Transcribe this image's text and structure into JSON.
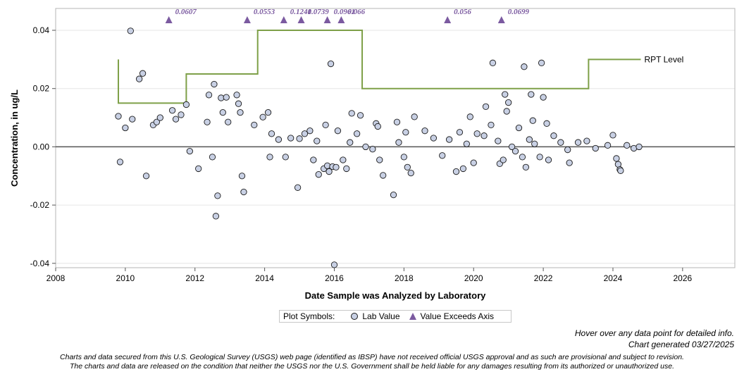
{
  "chart_data": {
    "type": "scatter",
    "title": "",
    "xlabel": "Date Sample was Analyzed by Laboratory",
    "ylabel": "Concentration, in ug/L",
    "xlim": [
      2008,
      2027.5
    ],
    "ylim": [
      -0.0415,
      0.0475
    ],
    "x_ticks": [
      "2008",
      "2010",
      "2012",
      "2014",
      "2016",
      "2018",
      "2020",
      "2022",
      "2024",
      "2026"
    ],
    "y_ticks": [
      "0.04",
      "0.02",
      "0.00",
      "-0.02",
      "-0.04"
    ],
    "grid": "horizontal",
    "series": [
      {
        "name": "Lab Value",
        "marker": "circle",
        "points": [
          [
            2009.8,
            0.0105
          ],
          [
            2009.85,
            -0.0052
          ],
          [
            2010.0,
            0.0065
          ],
          [
            2010.15,
            0.0398
          ],
          [
            2010.2,
            0.0095
          ],
          [
            2010.4,
            0.0233
          ],
          [
            2010.5,
            0.0252
          ],
          [
            2010.6,
            -0.01
          ],
          [
            2010.8,
            0.0075
          ],
          [
            2010.9,
            0.0085
          ],
          [
            2011.0,
            0.01
          ],
          [
            2011.35,
            0.0125
          ],
          [
            2011.45,
            0.0095
          ],
          [
            2011.6,
            0.011
          ],
          [
            2011.75,
            0.0145
          ],
          [
            2011.85,
            -0.0015
          ],
          [
            2012.1,
            -0.0075
          ],
          [
            2012.35,
            0.0085
          ],
          [
            2012.4,
            0.0178
          ],
          [
            2012.5,
            -0.0035
          ],
          [
            2012.55,
            0.0215
          ],
          [
            2012.6,
            -0.0238
          ],
          [
            2012.65,
            -0.0168
          ],
          [
            2012.75,
            0.0168
          ],
          [
            2012.8,
            0.0118
          ],
          [
            2012.9,
            0.017
          ],
          [
            2012.95,
            0.0085
          ],
          [
            2013.2,
            0.0178
          ],
          [
            2013.25,
            0.0148
          ],
          [
            2013.3,
            0.0118
          ],
          [
            2013.35,
            -0.01
          ],
          [
            2013.4,
            -0.0155
          ],
          [
            2013.7,
            0.0075
          ],
          [
            2013.95,
            0.0102
          ],
          [
            2014.1,
            0.0118
          ],
          [
            2014.15,
            -0.0035
          ],
          [
            2014.2,
            0.0045
          ],
          [
            2014.4,
            0.0025
          ],
          [
            2014.6,
            -0.0035
          ],
          [
            2014.75,
            0.003
          ],
          [
            2014.95,
            -0.014
          ],
          [
            2015.0,
            0.0028
          ],
          [
            2015.15,
            0.0045
          ],
          [
            2015.3,
            0.0055
          ],
          [
            2015.4,
            -0.0045
          ],
          [
            2015.5,
            0.002
          ],
          [
            2015.55,
            -0.0095
          ],
          [
            2015.7,
            -0.0075
          ],
          [
            2015.75,
            0.0075
          ],
          [
            2015.8,
            -0.0065
          ],
          [
            2015.85,
            -0.0085
          ],
          [
            2015.9,
            0.0285
          ],
          [
            2015.95,
            -0.0068
          ],
          [
            2016.0,
            -0.0405
          ],
          [
            2016.05,
            -0.007
          ],
          [
            2016.1,
            0.0055
          ],
          [
            2016.25,
            -0.0045
          ],
          [
            2016.35,
            -0.0075
          ],
          [
            2016.45,
            0.0015
          ],
          [
            2016.5,
            0.0115
          ],
          [
            2016.65,
            0.0045
          ],
          [
            2016.75,
            0.0108
          ],
          [
            2016.9,
            0.0
          ],
          [
            2017.1,
            -0.0008
          ],
          [
            2017.2,
            0.008
          ],
          [
            2017.25,
            0.007
          ],
          [
            2017.3,
            -0.0045
          ],
          [
            2017.4,
            -0.0098
          ],
          [
            2017.7,
            -0.0165
          ],
          [
            2017.8,
            0.0085
          ],
          [
            2017.85,
            0.0015
          ],
          [
            2018.0,
            -0.0035
          ],
          [
            2018.05,
            0.005
          ],
          [
            2018.1,
            -0.007
          ],
          [
            2018.2,
            -0.009
          ],
          [
            2018.3,
            0.0103
          ],
          [
            2018.6,
            0.0055
          ],
          [
            2018.85,
            0.003
          ],
          [
            2019.1,
            -0.003
          ],
          [
            2019.3,
            0.0025
          ],
          [
            2019.5,
            -0.0085
          ],
          [
            2019.6,
            0.005
          ],
          [
            2019.7,
            -0.0075
          ],
          [
            2019.8,
            0.001
          ],
          [
            2019.9,
            0.0103
          ],
          [
            2020.0,
            -0.0055
          ],
          [
            2020.1,
            0.0045
          ],
          [
            2020.3,
            0.0038
          ],
          [
            2020.35,
            0.0138
          ],
          [
            2020.5,
            0.0075
          ],
          [
            2020.55,
            0.0288
          ],
          [
            2020.7,
            0.002
          ],
          [
            2020.75,
            -0.0058
          ],
          [
            2020.85,
            -0.0045
          ],
          [
            2020.9,
            0.018
          ],
          [
            2020.95,
            0.0122
          ],
          [
            2021.0,
            0.0152
          ],
          [
            2021.1,
            0.0
          ],
          [
            2021.2,
            -0.0015
          ],
          [
            2021.3,
            0.0065
          ],
          [
            2021.4,
            -0.0035
          ],
          [
            2021.45,
            0.0275
          ],
          [
            2021.5,
            -0.007
          ],
          [
            2021.6,
            0.0025
          ],
          [
            2021.65,
            0.018
          ],
          [
            2021.7,
            0.009
          ],
          [
            2021.75,
            0.001
          ],
          [
            2021.9,
            -0.0035
          ],
          [
            2021.95,
            0.0288
          ],
          [
            2022.0,
            0.017
          ],
          [
            2022.1,
            0.008
          ],
          [
            2022.15,
            -0.0045
          ],
          [
            2022.3,
            0.0038
          ],
          [
            2022.5,
            0.0015
          ],
          [
            2022.7,
            -0.001
          ],
          [
            2022.75,
            -0.0055
          ],
          [
            2023.0,
            0.0015
          ],
          [
            2023.25,
            0.002
          ],
          [
            2023.5,
            -0.0005
          ],
          [
            2023.85,
            0.0005
          ],
          [
            2024.0,
            0.004
          ],
          [
            2024.1,
            -0.004
          ],
          [
            2024.15,
            -0.006
          ],
          [
            2024.2,
            -0.0078
          ],
          [
            2024.22,
            -0.0082
          ],
          [
            2024.4,
            0.0005
          ],
          [
            2024.6,
            -0.0005
          ],
          [
            2024.75,
            0.0
          ]
        ]
      },
      {
        "name": "Value Exceeds Axis",
        "marker": "triangle",
        "points": [
          {
            "x": 2011.25,
            "label": "0.0607"
          },
          {
            "x": 2013.5,
            "label": "0.0553"
          },
          {
            "x": 2014.55,
            "label": "0.1241"
          },
          {
            "x": 2015.05,
            "label": "0.0739"
          },
          {
            "x": 2015.8,
            "label": "0.0961"
          },
          {
            "x": 2016.2,
            "label": "0.066"
          },
          {
            "x": 2019.25,
            "label": "0.056"
          },
          {
            "x": 2020.8,
            "label": "0.0699"
          }
        ]
      },
      {
        "name": "RPT Level",
        "type": "step",
        "points": [
          [
            2009.8,
            0.03
          ],
          [
            2009.8,
            0.015
          ],
          [
            2011.75,
            0.015
          ],
          [
            2011.75,
            0.025
          ],
          [
            2013.8,
            0.025
          ],
          [
            2013.8,
            0.04
          ],
          [
            2016.8,
            0.04
          ],
          [
            2016.8,
            0.02
          ],
          [
            2023.3,
            0.02
          ],
          [
            2023.3,
            0.03
          ],
          [
            2024.8,
            0.03
          ]
        ]
      }
    ],
    "rpt_label": "RPT Level",
    "colors": {
      "circle_fill": "#c8d0e4",
      "triangle": "#7b5aa0",
      "rpt": "#7ea048",
      "zero_line": "#555555"
    }
  },
  "legend": {
    "title": "Plot Symbols:",
    "items": [
      {
        "label": "Lab Value"
      },
      {
        "label": "Value Exceeds Axis"
      }
    ]
  },
  "notes": {
    "hover": "Hover over any data point for detailed info.",
    "generated": "Chart generated 03/27/2025"
  },
  "disclaimer": {
    "line1": "Charts and data secured from this U.S. Geological Survey (USGS) web page (identified as IBSP) have not received official USGS approval and as such are provisional and subject to revision.",
    "line2": "The charts and data are released on the condition that neither the USGS nor the U.S. Government shall be held liable for any damages resulting from its authorized or unauthorized use."
  }
}
